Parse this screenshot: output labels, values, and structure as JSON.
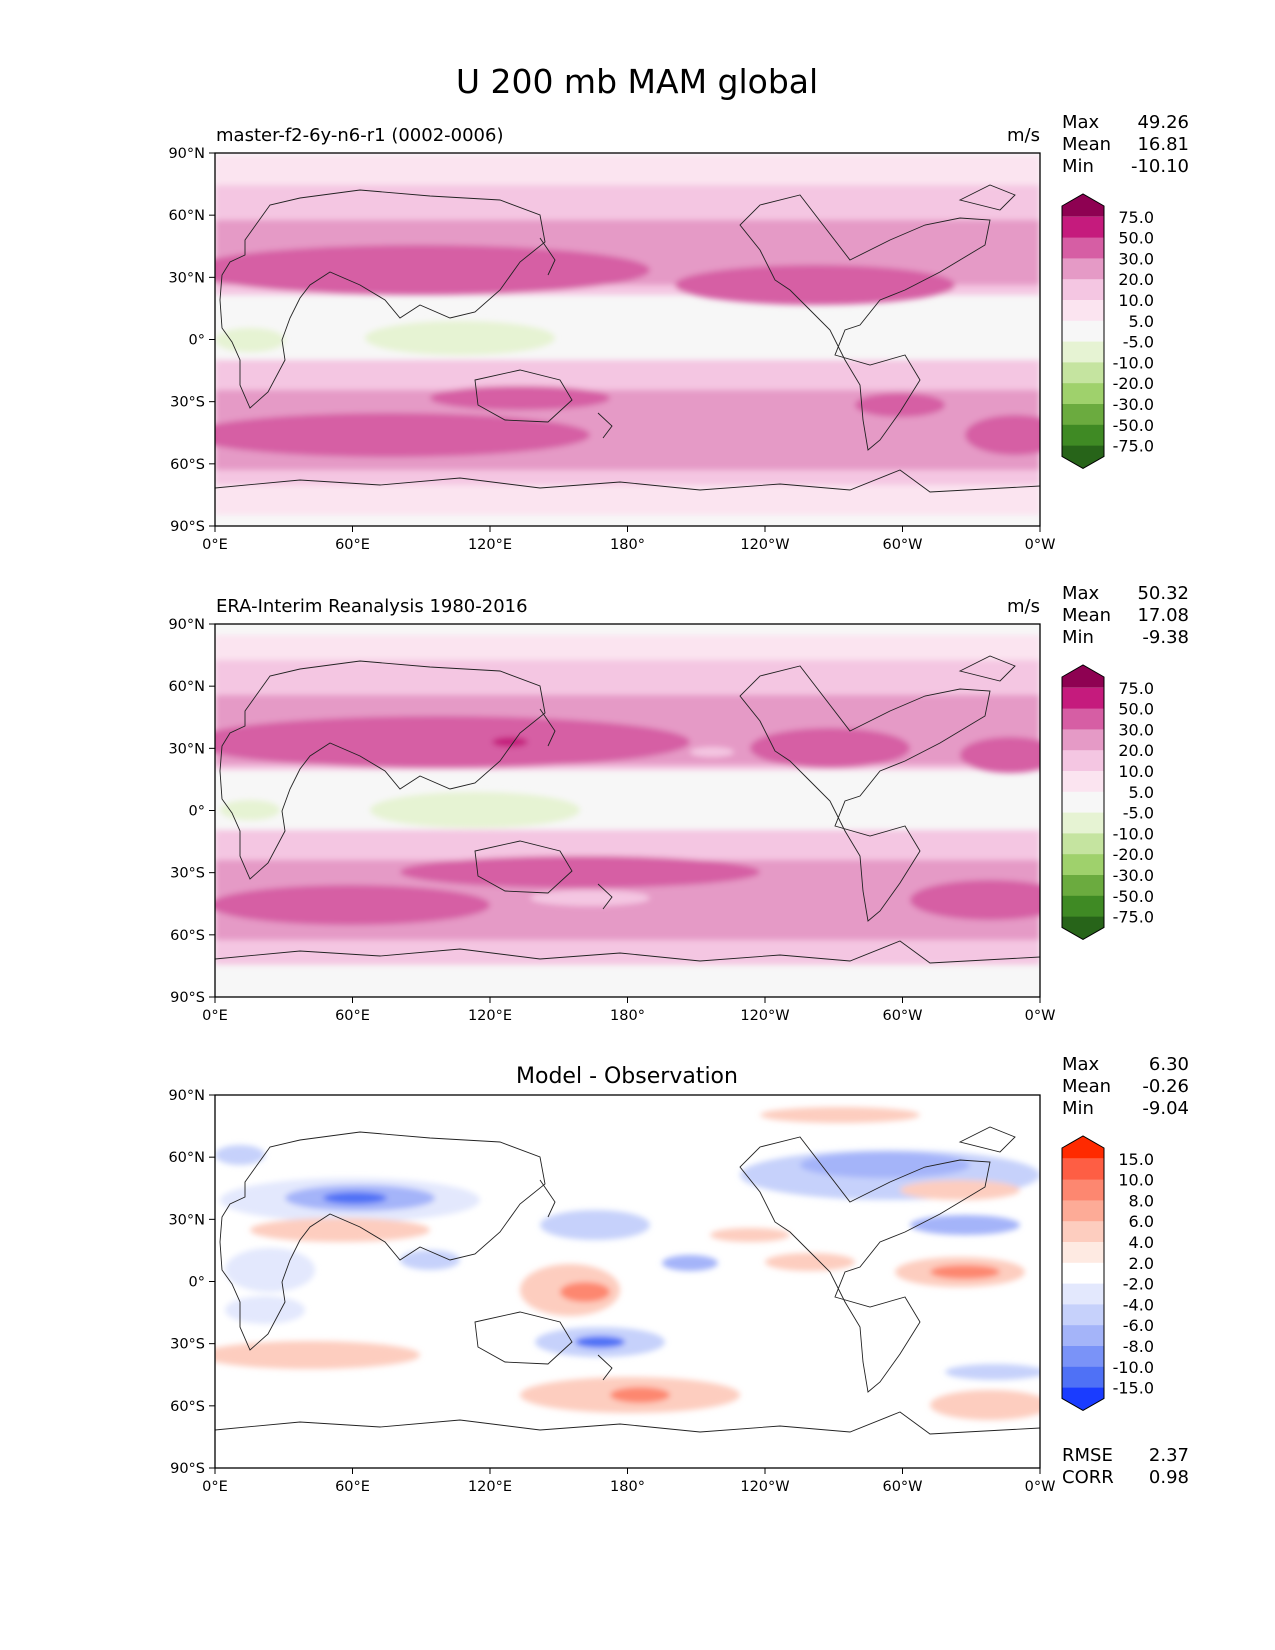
{
  "figure": {
    "title": "U 200 mb MAM global"
  },
  "lat_ticks": [
    "90°N",
    "60°N",
    "30°N",
    "0°",
    "30°S",
    "60°S",
    "90°S"
  ],
  "lon_ticks": [
    "0°E",
    "60°E",
    "120°E",
    "180°",
    "120°W",
    "60°W",
    "0°W"
  ],
  "chart_data": [
    {
      "type": "heatmap",
      "title_left": "master-f2-6y-n6-r1 (0002-0006)",
      "title_center": "",
      "units": "m/s",
      "stats": [
        {
          "label": "Max",
          "value": "49.26"
        },
        {
          "label": "Mean",
          "value": "16.81"
        },
        {
          "label": "Min",
          "value": "-10.10"
        }
      ],
      "colorbar": {
        "labels": [
          "75.0",
          "50.0",
          "30.0",
          "20.0",
          "10.0",
          "5.0",
          "-5.0",
          "-10.0",
          "-20.0",
          "-30.0",
          "-50.0",
          "-75.0"
        ],
        "colors": [
          "#8e0152",
          "#c51b7d",
          "#d65ea4",
          "#e59ac6",
          "#f4c6e2",
          "#fbe4f0",
          "#f7f7f7",
          "#e6f3d3",
          "#c5e4a0",
          "#9fd16c",
          "#6bab3f",
          "#3f8a24",
          "#276419"
        ]
      },
      "metrics": []
    },
    {
      "type": "heatmap",
      "title_left": "ERA-Interim Reanalysis 1980-2016",
      "title_center": "",
      "units": "m/s",
      "stats": [
        {
          "label": "Max",
          "value": "50.32"
        },
        {
          "label": "Mean",
          "value": "17.08"
        },
        {
          "label": "Min",
          "value": "-9.38"
        }
      ],
      "colorbar": {
        "labels": [
          "75.0",
          "50.0",
          "30.0",
          "20.0",
          "10.0",
          "5.0",
          "-5.0",
          "-10.0",
          "-20.0",
          "-30.0",
          "-50.0",
          "-75.0"
        ],
        "colors": [
          "#8e0152",
          "#c51b7d",
          "#d65ea4",
          "#e59ac6",
          "#f4c6e2",
          "#fbe4f0",
          "#f7f7f7",
          "#e6f3d3",
          "#c5e4a0",
          "#9fd16c",
          "#6bab3f",
          "#3f8a24",
          "#276419"
        ]
      },
      "metrics": []
    },
    {
      "type": "heatmap",
      "title_left": "",
      "title_center": "Model - Observation",
      "units": "",
      "stats": [
        {
          "label": "Max",
          "value": "6.30"
        },
        {
          "label": "Mean",
          "value": "-0.26"
        },
        {
          "label": "Min",
          "value": "-9.04"
        }
      ],
      "colorbar": {
        "labels": [
          "15.0",
          "10.0",
          "8.0",
          "6.0",
          "4.0",
          "2.0",
          "-2.0",
          "-4.0",
          "-6.0",
          "-8.0",
          "-10.0",
          "-15.0"
        ],
        "colors": [
          "#ff2a00",
          "#fe5e44",
          "#fd8770",
          "#fdab97",
          "#fdcdbf",
          "#feeae2",
          "#ffffff",
          "#e3e8fd",
          "#c6d1fb",
          "#a4b4f9",
          "#7a93f8",
          "#4f71f6",
          "#1a3cff"
        ]
      },
      "metrics": [
        {
          "label": "RMSE",
          "value": "2.37"
        },
        {
          "label": "CORR",
          "value": "0.98"
        }
      ]
    }
  ]
}
